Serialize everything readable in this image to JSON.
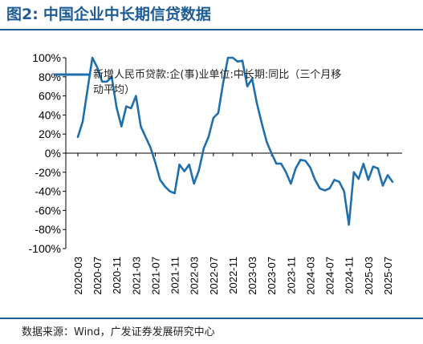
{
  "figure": {
    "label": "图2:",
    "title": "中国企业中长期信贷数据",
    "source": "数据来源：Wind，广发证券发展研究中心"
  },
  "colors": {
    "title": "#1f5c96",
    "line": "#1f6fad",
    "axis": "#000000"
  },
  "chart_data": {
    "type": "line",
    "legend": {
      "position": "top-left",
      "label": "新增人民币贷款:企(事)业单位:中长期:同比（三个月移动平均）"
    },
    "ylim": [
      -100,
      100
    ],
    "yticks": [
      100,
      80,
      60,
      40,
      20,
      0,
      -20,
      -40,
      -60,
      -80,
      -100
    ],
    "ytick_labels": [
      "100%",
      "80%",
      "60%",
      "40%",
      "20%",
      "0%",
      "-20%",
      "-40%",
      "-60%",
      "-80%",
      "-100%"
    ],
    "x_start": "2020-03",
    "xtick_labels": [
      "2020-03",
      "2020-07",
      "2020-11",
      "2021-03",
      "2021-07",
      "2021-11",
      "2022-03",
      "2022-07",
      "2022-11",
      "2023-03",
      "2023-07",
      "2023-11",
      "2024-03",
      "2024-07",
      "2024-11",
      "2025-03",
      "2025-07"
    ],
    "grid": false,
    "series": [
      {
        "name": "新增人民币贷款:企(事)业单位:中长期:同比（三个月移动平均）",
        "values": [
          17,
          33,
          67,
          100,
          90,
          75,
          75,
          80,
          48,
          28,
          49,
          47,
          60,
          28,
          17,
          6,
          -10,
          -28,
          -35,
          -40,
          -42,
          -12,
          -19,
          -12,
          -32,
          -18,
          5,
          17,
          37,
          42,
          73,
          100,
          100,
          96,
          97,
          70,
          78,
          52,
          31,
          12,
          0,
          -11,
          -11,
          -20,
          -32,
          -16,
          -7,
          -8,
          -15,
          -28,
          -37,
          -39,
          -37,
          -28,
          -30,
          -40,
          -75,
          -20,
          -27,
          -11,
          -28,
          -14,
          -16,
          -34,
          -23,
          -30
        ]
      }
    ]
  }
}
